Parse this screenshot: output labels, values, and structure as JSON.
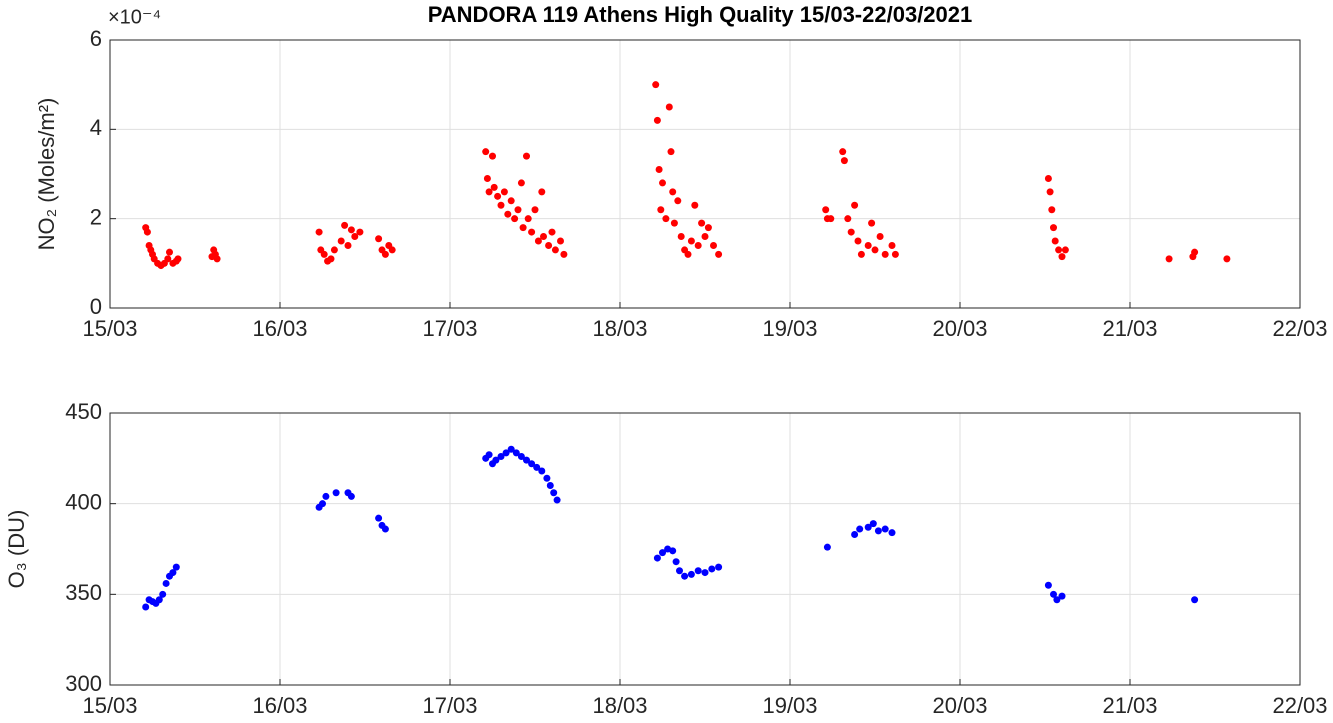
{
  "chart_data": [
    {
      "type": "scatter",
      "title": "PANDORA 119 Athens High Quality 15/03-22/03/2021",
      "y_exponent": "×10⁻⁴",
      "ylabel": "NO₂ (Moles/m²)",
      "color": "#ff0000",
      "grid": true,
      "xlim": [
        15,
        22
      ],
      "xticks": [
        {
          "value": 15,
          "label": "15/03"
        },
        {
          "value": 16,
          "label": "16/03"
        },
        {
          "value": 17,
          "label": "17/03"
        },
        {
          "value": 18,
          "label": "18/03"
        },
        {
          "value": 19,
          "label": "19/03"
        },
        {
          "value": 20,
          "label": "20/03"
        },
        {
          "value": 21,
          "label": "21/03"
        },
        {
          "value": 22,
          "label": "22/03"
        }
      ],
      "ylim": [
        0,
        6
      ],
      "yticks": [
        0,
        2,
        4,
        6
      ],
      "x": [
        15.21,
        15.22,
        15.23,
        15.24,
        15.25,
        15.26,
        15.28,
        15.3,
        15.32,
        15.34,
        15.35,
        15.37,
        15.39,
        15.4,
        15.6,
        15.61,
        15.62,
        15.63,
        16.23,
        16.24,
        16.26,
        16.28,
        16.3,
        16.32,
        16.36,
        16.38,
        16.4,
        16.42,
        16.44,
        16.47,
        16.58,
        16.6,
        16.62,
        16.64,
        16.66,
        17.21,
        17.22,
        17.23,
        17.25,
        17.26,
        17.28,
        17.3,
        17.32,
        17.34,
        17.36,
        17.38,
        17.4,
        17.42,
        17.43,
        17.45,
        17.46,
        17.48,
        17.5,
        17.52,
        17.54,
        17.55,
        17.58,
        17.6,
        17.62,
        17.65,
        17.67,
        18.21,
        18.22,
        18.23,
        18.24,
        18.25,
        18.27,
        18.29,
        18.3,
        18.31,
        18.32,
        18.34,
        18.36,
        18.38,
        18.4,
        18.42,
        18.44,
        18.46,
        18.48,
        18.5,
        18.52,
        18.55,
        18.58,
        19.21,
        19.22,
        19.24,
        19.31,
        19.32,
        19.34,
        19.36,
        19.38,
        19.4,
        19.42,
        19.46,
        19.48,
        19.5,
        19.53,
        19.56,
        19.6,
        19.62,
        20.52,
        20.53,
        20.54,
        20.55,
        20.56,
        20.58,
        20.6,
        20.62,
        21.23,
        21.37,
        21.38,
        21.57
      ],
      "values": [
        1.8,
        1.7,
        1.4,
        1.3,
        1.2,
        1.1,
        1.0,
        0.95,
        1.0,
        1.1,
        1.25,
        1.0,
        1.05,
        1.1,
        1.15,
        1.3,
        1.2,
        1.1,
        1.7,
        1.3,
        1.2,
        1.05,
        1.1,
        1.3,
        1.5,
        1.85,
        1.4,
        1.75,
        1.6,
        1.7,
        1.55,
        1.3,
        1.2,
        1.4,
        1.3,
        3.5,
        2.9,
        2.6,
        3.4,
        2.7,
        2.5,
        2.3,
        2.6,
        2.1,
        2.4,
        2.0,
        2.2,
        2.8,
        1.8,
        3.4,
        2.0,
        1.7,
        2.2,
        1.5,
        2.6,
        1.6,
        1.4,
        1.7,
        1.3,
        1.5,
        1.2,
        5.0,
        4.2,
        3.1,
        2.2,
        2.8,
        2.0,
        4.5,
        3.5,
        2.6,
        1.9,
        2.4,
        1.6,
        1.3,
        1.2,
        1.5,
        2.3,
        1.4,
        1.9,
        1.6,
        1.8,
        1.4,
        1.2,
        2.2,
        2.0,
        2.0,
        3.5,
        3.3,
        2.0,
        1.7,
        2.3,
        1.5,
        1.2,
        1.4,
        1.9,
        1.3,
        1.6,
        1.2,
        1.4,
        1.2,
        2.9,
        2.6,
        2.2,
        1.8,
        1.5,
        1.3,
        1.15,
        1.3,
        1.1,
        1.15,
        1.25,
        1.1
      ]
    },
    {
      "type": "scatter",
      "ylabel": "O₃ (DU)",
      "color": "#0000ff",
      "grid": true,
      "xlim": [
        15,
        22
      ],
      "xticks": [
        {
          "value": 15,
          "label": "15/03"
        },
        {
          "value": 16,
          "label": "16/03"
        },
        {
          "value": 17,
          "label": "17/03"
        },
        {
          "value": 18,
          "label": "18/03"
        },
        {
          "value": 19,
          "label": "19/03"
        },
        {
          "value": 20,
          "label": "20/03"
        },
        {
          "value": 21,
          "label": "21/03"
        },
        {
          "value": 22,
          "label": "22/03"
        }
      ],
      "ylim": [
        300,
        450
      ],
      "yticks": [
        300,
        350,
        400,
        450
      ],
      "x": [
        15.21,
        15.23,
        15.25,
        15.27,
        15.29,
        15.31,
        15.33,
        15.35,
        15.37,
        15.39,
        16.23,
        16.25,
        16.27,
        16.33,
        16.4,
        16.42,
        16.58,
        16.6,
        16.62,
        17.21,
        17.23,
        17.25,
        17.27,
        17.3,
        17.33,
        17.36,
        17.39,
        17.42,
        17.45,
        17.48,
        17.51,
        17.54,
        17.57,
        17.59,
        17.61,
        17.63,
        18.22,
        18.25,
        18.28,
        18.31,
        18.33,
        18.35,
        18.38,
        18.42,
        18.46,
        18.5,
        18.54,
        18.58,
        19.22,
        19.38,
        19.41,
        19.46,
        19.49,
        19.52,
        19.56,
        19.6,
        20.52,
        20.55,
        20.57,
        20.6,
        21.38
      ],
      "values": [
        343,
        347,
        346,
        345,
        347,
        350,
        356,
        360,
        362,
        365,
        398,
        400,
        404,
        406,
        406,
        404,
        392,
        388,
        386,
        425,
        427,
        422,
        424,
        426,
        428,
        430,
        428,
        426,
        424,
        422,
        420,
        418,
        414,
        410,
        406,
        402,
        370,
        373,
        375,
        374,
        368,
        363,
        360,
        361,
        363,
        362,
        364,
        365,
        376,
        383,
        386,
        387,
        389,
        385,
        386,
        384,
        355,
        350,
        347,
        349,
        347
      ]
    }
  ]
}
